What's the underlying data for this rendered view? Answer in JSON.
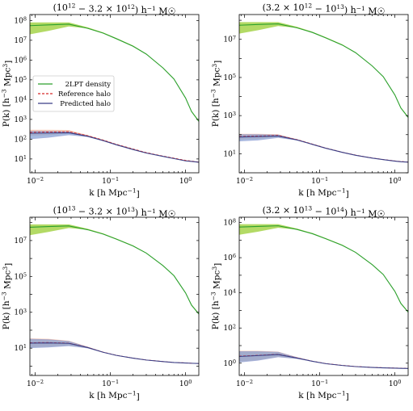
{
  "colors": {
    "density_line": "#2ca02c",
    "density_band": "#9acd32",
    "reference_line": "#d62728",
    "reference_band": "#f4a582",
    "predicted_line": "#3a3f86",
    "predicted_band": "#6f7cc6",
    "lower_band_light": "#9ecae1"
  },
  "chart_data": [
    {
      "type": "line",
      "title": "(10^12 − 3.2 × 10^12) h^−1 M☉",
      "xlabel": "k [h Mpc^−1]",
      "ylabel": "P(k) [h^−3 Mpc^3]",
      "xscale": "log",
      "yscale": "log",
      "xlim": [
        0.0085,
        1.5
      ],
      "ylim": [
        2,
        200000000
      ],
      "xticks": [
        0.01,
        0.1,
        1
      ],
      "xtick_labels": [
        "10^−2",
        "10^−1",
        "10^0"
      ],
      "yticks": [
        10,
        100,
        1000,
        10000,
        100000,
        1000000,
        10000000,
        100000000
      ],
      "ytick_labels": [
        "10^1",
        "10^2",
        "10^3",
        "10^4",
        "10^5",
        "10^6",
        "10^7",
        "10^8"
      ],
      "legend": {
        "placement": "center-left",
        "entries": [
          "2LPT density",
          "Reference halo",
          "Predicted halo"
        ]
      },
      "x": [
        0.0085,
        0.015,
        0.028,
        0.05,
        0.08,
        0.12,
        0.2,
        0.3,
        0.5,
        0.7,
        1.0,
        1.2,
        1.5
      ],
      "series": [
        {
          "name": "2LPT density",
          "values": [
            55000000,
            60000000,
            65000000,
            40000000,
            23000000,
            12000000,
            5000000,
            2000000,
            400000,
            110000,
            12000,
            2500,
            800
          ],
          "band_low": [
            20000000,
            30000000,
            50000000,
            40000000,
            23000000,
            12000000,
            5000000,
            2000000,
            400000,
            110000,
            12000,
            2500,
            800
          ],
          "band_high": [
            80000000,
            80000000,
            80000000,
            45000000,
            25000000,
            13000000,
            5400000,
            2100000,
            420000,
            115000,
            12500,
            2700,
            900
          ]
        },
        {
          "name": "Reference halo",
          "values": [
            220,
            230,
            240,
            150,
            90,
            55,
            32,
            21,
            14,
            11,
            8.5,
            7.8,
            7
          ],
          "band_low": [
            150,
            160,
            200,
            140,
            85,
            53,
            31,
            20.5,
            13.8,
            10.8,
            8.3,
            7.6,
            6.8
          ],
          "band_high": [
            300,
            300,
            290,
            160,
            95,
            57,
            33,
            21.5,
            14.2,
            11.2,
            8.7,
            8,
            7.2
          ]
        },
        {
          "name": "Predicted halo",
          "values": [
            200,
            205,
            210,
            140,
            85,
            52,
            30,
            20,
            13.5,
            10.5,
            8,
            7.5,
            6.8
          ],
          "band_low": [
            100,
            120,
            160,
            130,
            80,
            50,
            29,
            19.5,
            13.2,
            10.3,
            7.8,
            7.3,
            6.6
          ],
          "band_high": [
            260,
            260,
            250,
            150,
            90,
            54,
            31,
            20.5,
            13.8,
            10.7,
            8.2,
            7.7,
            7
          ]
        }
      ]
    },
    {
      "type": "line",
      "title": "(3.2 × 10^12 − 10^13) h^−1 M☉",
      "xlabel": "k [h Mpc^−1]",
      "ylabel": "P(k) [h^−3 Mpc^3]",
      "xscale": "log",
      "yscale": "log",
      "xlim": [
        0.0085,
        1.5
      ],
      "ylim": [
        1,
        200000000
      ],
      "xticks": [
        0.01,
        0.1,
        1
      ],
      "xtick_labels": [
        "10^−2",
        "10^−1",
        "10^0"
      ],
      "yticks": [
        10,
        1000,
        100000,
        10000000
      ],
      "ytick_labels": [
        "10^1",
        "10^3",
        "10^5",
        "10^7"
      ],
      "x": [
        0.0085,
        0.015,
        0.028,
        0.05,
        0.08,
        0.12,
        0.2,
        0.3,
        0.5,
        0.7,
        1.0,
        1.2,
        1.5
      ],
      "series": [
        {
          "name": "2LPT density",
          "values": [
            55000000,
            60000000,
            65000000,
            40000000,
            23000000,
            12000000,
            5000000,
            2000000,
            400000,
            110000,
            12000,
            2500,
            800
          ],
          "band_low": [
            20000000,
            30000000,
            50000000,
            40000000,
            23000000,
            12000000,
            5000000,
            2000000,
            400000,
            110000,
            12000,
            2500,
            800
          ],
          "band_high": [
            80000000,
            80000000,
            80000000,
            45000000,
            25000000,
            13000000,
            5400000,
            2100000,
            420000,
            115000,
            12500,
            2700,
            900
          ]
        },
        {
          "name": "Reference halo",
          "values": [
            80,
            85,
            90,
            55,
            32,
            20,
            12,
            8.5,
            6,
            5,
            4.2,
            3.9,
            3.7
          ],
          "band_low": [
            55,
            60,
            75,
            52,
            31,
            19.5,
            11.8,
            8.3,
            5.9,
            4.9,
            4.1,
            3.8,
            3.6
          ],
          "band_high": [
            110,
            110,
            105,
            58,
            33,
            20.5,
            12.2,
            8.7,
            6.1,
            5.1,
            4.3,
            4,
            3.8
          ]
        },
        {
          "name": "Predicted halo",
          "values": [
            75,
            80,
            85,
            53,
            31,
            19.5,
            11.8,
            8.3,
            5.9,
            4.9,
            4.1,
            3.8,
            3.6
          ],
          "band_low": [
            45,
            50,
            68,
            50,
            30,
            19,
            11.5,
            8.1,
            5.8,
            4.8,
            4,
            3.7,
            3.5
          ],
          "band_high": [
            105,
            105,
            100,
            56,
            32,
            20,
            12,
            8.5,
            6,
            5,
            4.2,
            3.9,
            3.7
          ]
        }
      ]
    },
    {
      "type": "line",
      "title": "(10^13 − 3.2 × 10^13) h^−1 M☉",
      "xlabel": "k [h Mpc^−1]",
      "ylabel": "P(k) [h^−3 Mpc^3]",
      "xscale": "log",
      "yscale": "log",
      "xlim": [
        0.0085,
        1.5
      ],
      "ylim": [
        0.3,
        200000000
      ],
      "xticks": [
        0.01,
        0.1,
        1
      ],
      "xtick_labels": [
        "10^−2",
        "10^−1",
        "10^0"
      ],
      "yticks": [
        10,
        1000,
        100000,
        10000000
      ],
      "ytick_labels": [
        "10^1",
        "10^3",
        "10^5",
        "10^7"
      ],
      "x": [
        0.0085,
        0.015,
        0.028,
        0.05,
        0.08,
        0.12,
        0.2,
        0.3,
        0.5,
        0.7,
        1.0,
        1.2,
        1.5
      ],
      "series": [
        {
          "name": "2LPT density",
          "values": [
            55000000,
            60000000,
            65000000,
            40000000,
            23000000,
            12000000,
            5000000,
            2000000,
            400000,
            110000,
            12000,
            2500,
            800
          ],
          "band_low": [
            20000000,
            30000000,
            50000000,
            40000000,
            23000000,
            12000000,
            5000000,
            2000000,
            400000,
            110000,
            12000,
            2500,
            800
          ],
          "band_high": [
            80000000,
            80000000,
            80000000,
            45000000,
            25000000,
            13000000,
            5400000,
            2100000,
            420000,
            115000,
            12500,
            2700,
            900
          ]
        },
        {
          "name": "Reference halo",
          "values": [
            20,
            20.5,
            19,
            11,
            6,
            4,
            2.8,
            2.2,
            1.8,
            1.6,
            1.5,
            1.45,
            1.4
          ],
          "band_low": [
            11,
            12,
            14,
            10,
            5.8,
            3.9,
            2.75,
            2.15,
            1.78,
            1.58,
            1.48,
            1.43,
            1.38
          ],
          "band_high": [
            35,
            33,
            26,
            12,
            6.2,
            4.1,
            2.85,
            2.25,
            1.82,
            1.62,
            1.52,
            1.47,
            1.42
          ]
        },
        {
          "name": "Predicted halo",
          "values": [
            19,
            19.5,
            18.5,
            10.8,
            5.9,
            3.95,
            2.78,
            2.18,
            1.79,
            1.59,
            1.49,
            1.44,
            1.39
          ],
          "band_low": [
            10,
            11,
            13,
            9.8,
            5.7,
            3.85,
            2.72,
            2.13,
            1.76,
            1.56,
            1.46,
            1.41,
            1.36
          ],
          "band_high": [
            33,
            31,
            25,
            11.8,
            6.1,
            4.05,
            2.83,
            2.22,
            1.81,
            1.61,
            1.51,
            1.46,
            1.41
          ]
        }
      ]
    },
    {
      "type": "line",
      "title": "(3.2 × 10^13 − 10^14) h^−1 M☉",
      "xlabel": "k [h Mpc^−1]",
      "ylabel": "P(k) [h^−3 Mpc^3]",
      "xscale": "log",
      "yscale": "log",
      "xlim": [
        0.0085,
        1.5
      ],
      "ylim": [
        0.2,
        200000000
      ],
      "xticks": [
        0.01,
        0.1,
        1
      ],
      "xtick_labels": [
        "10^−2",
        "10^−1",
        "10^0"
      ],
      "yticks": [
        1,
        100,
        10000,
        1000000,
        100000000
      ],
      "ytick_labels": [
        "10^0",
        "10^2",
        "10^4",
        "10^6",
        "10^8"
      ],
      "x": [
        0.0085,
        0.015,
        0.028,
        0.05,
        0.08,
        0.12,
        0.2,
        0.3,
        0.5,
        0.7,
        1.0,
        1.2,
        1.5
      ],
      "series": [
        {
          "name": "2LPT density",
          "values": [
            55000000,
            60000000,
            65000000,
            40000000,
            23000000,
            12000000,
            5000000,
            2000000,
            400000,
            110000,
            12000,
            2500,
            800
          ],
          "band_low": [
            20000000,
            30000000,
            50000000,
            40000000,
            23000000,
            12000000,
            5000000,
            2000000,
            400000,
            110000,
            12000,
            2500,
            800
          ],
          "band_high": [
            80000000,
            80000000,
            80000000,
            45000000,
            25000000,
            13000000,
            5400000,
            2100000,
            420000,
            115000,
            12500,
            2700,
            900
          ]
        },
        {
          "name": "Reference halo",
          "values": [
            2.5,
            2.8,
            3.2,
            2,
            1.3,
            0.95,
            0.75,
            0.65,
            0.58,
            0.55,
            0.53,
            0.52,
            0.51
          ],
          "band_low": [
            1.2,
            1.5,
            2.3,
            1.8,
            1.25,
            0.93,
            0.74,
            0.64,
            0.57,
            0.54,
            0.52,
            0.51,
            0.5
          ],
          "band_high": [
            5,
            5,
            4.5,
            2.2,
            1.35,
            0.97,
            0.76,
            0.66,
            0.59,
            0.56,
            0.54,
            0.53,
            0.52
          ]
        },
        {
          "name": "Predicted halo",
          "values": [
            2.4,
            2.7,
            3.1,
            1.95,
            1.28,
            0.94,
            0.74,
            0.64,
            0.57,
            0.54,
            0.52,
            0.51,
            0.5
          ],
          "band_low": [
            1.1,
            1.4,
            2.2,
            1.75,
            1.23,
            0.92,
            0.73,
            0.63,
            0.56,
            0.53,
            0.51,
            0.5,
            0.49
          ],
          "band_high": [
            4.8,
            4.8,
            4.4,
            2.15,
            1.33,
            0.96,
            0.75,
            0.65,
            0.58,
            0.55,
            0.53,
            0.52,
            0.51
          ]
        }
      ]
    }
  ]
}
